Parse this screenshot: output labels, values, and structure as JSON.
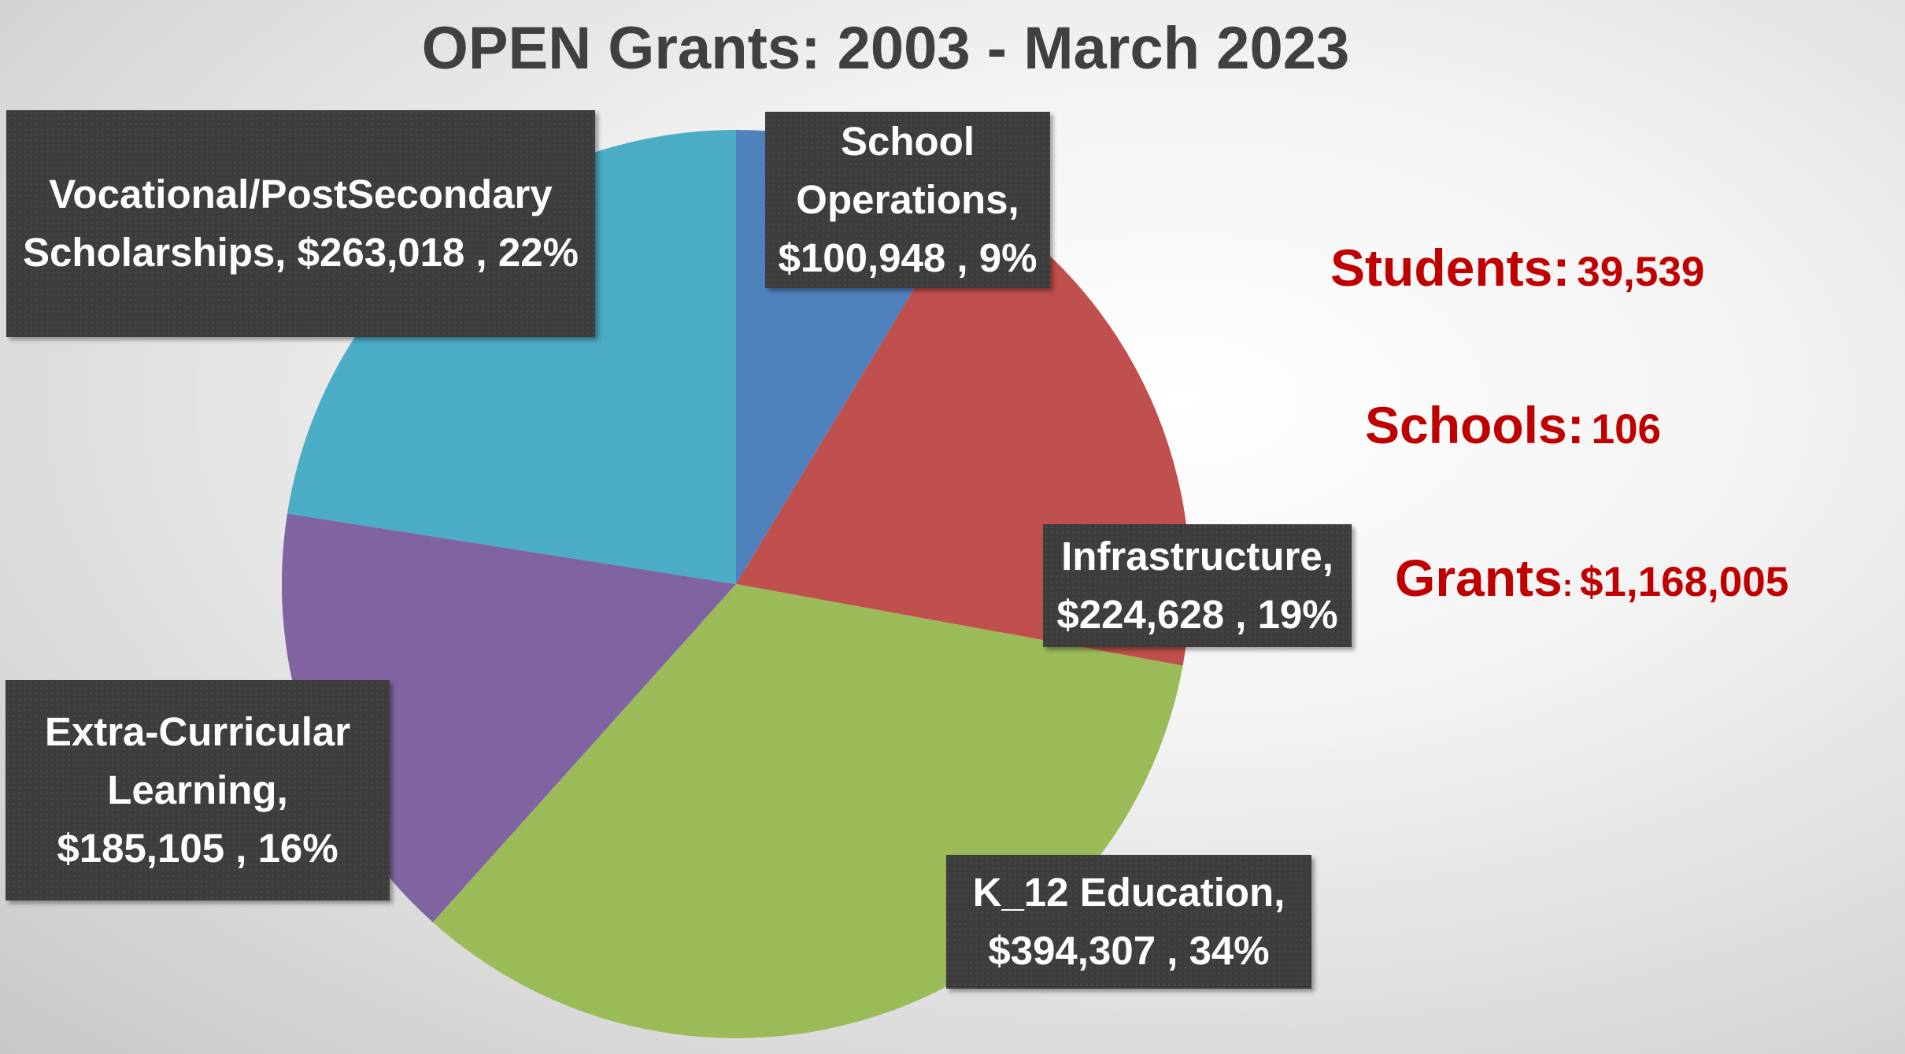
{
  "chart_data": {
    "type": "pie",
    "title": "OPEN Grants: 2003 - March 2023",
    "slices": [
      {
        "name": "School Operations",
        "value": 100948,
        "percent": 9,
        "color": "#4f81bd",
        "label_lines": [
          "School",
          "Operations,",
          "$100,948 , 9%"
        ]
      },
      {
        "name": "Infrastructure",
        "value": 224628,
        "percent": 19,
        "color": "#c0504d",
        "label_lines": [
          "Infrastructure,",
          "$224,628 , 19%"
        ]
      },
      {
        "name": "K_12 Education",
        "value": 394307,
        "percent": 34,
        "color": "#9bbb59",
        "label_lines": [
          "K_12 Education,",
          "$394,307 , 34%"
        ]
      },
      {
        "name": "Extra-Curricular Learning",
        "value": 185105,
        "percent": 16,
        "color": "#8064a2",
        "label_lines": [
          "Extra-Curricular",
          "Learning,",
          "$185,105 , 16%"
        ]
      },
      {
        "name": "Vocational/PostSecondary Scholarships",
        "value": 263018,
        "percent": 22,
        "color": "#4bacc6",
        "label_lines": [
          "Vocational/PostSecondary",
          "Scholarships,  $263,018 , 22%"
        ]
      }
    ]
  },
  "stats": [
    {
      "key": "Students:",
      "value": "39,539"
    },
    {
      "key": "Schools:",
      "value": "106"
    },
    {
      "key": "Grants",
      "sep": ":",
      "value": "$1,168,005"
    }
  ]
}
